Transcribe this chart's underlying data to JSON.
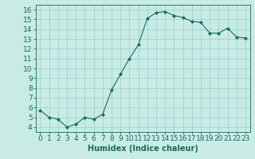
{
  "x": [
    0,
    1,
    2,
    3,
    4,
    5,
    6,
    7,
    8,
    9,
    10,
    11,
    12,
    13,
    14,
    15,
    16,
    17,
    18,
    19,
    20,
    21,
    22,
    23
  ],
  "y": [
    5.7,
    5.0,
    4.8,
    4.0,
    4.3,
    5.0,
    4.8,
    5.3,
    7.8,
    9.4,
    11.0,
    12.4,
    15.1,
    15.7,
    15.8,
    15.4,
    15.2,
    14.8,
    14.7,
    13.6,
    13.6,
    14.1,
    13.2,
    13.1
  ],
  "line_color": "#1a6b5a",
  "marker": "D",
  "marker_size": 2.0,
  "bg_color": "#c8ebe6",
  "grid_color": "#a0d4cc",
  "xlabel": "Humidex (Indice chaleur)",
  "xlim": [
    -0.5,
    23.5
  ],
  "ylim": [
    3.5,
    16.5
  ],
  "yticks": [
    4,
    5,
    6,
    7,
    8,
    9,
    10,
    11,
    12,
    13,
    14,
    15,
    16
  ],
  "xticks": [
    0,
    1,
    2,
    3,
    4,
    5,
    6,
    7,
    8,
    9,
    10,
    11,
    12,
    13,
    14,
    15,
    16,
    17,
    18,
    19,
    20,
    21,
    22,
    23
  ],
  "tick_color": "#1a6b5a",
  "label_fontsize": 7,
  "tick_fontsize": 6.5
}
